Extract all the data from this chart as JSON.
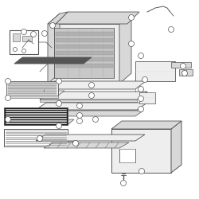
{
  "bg_color": "#ffffff",
  "lc": "#555555",
  "lc_dark": "#333333",
  "fill_white": "#ffffff",
  "fill_light": "#eeeeee",
  "fill_mid": "#d8d8d8",
  "fill_dark": "#aaaaaa",
  "fill_black": "#222222",
  "fill_grate": "#2a2a2a"
}
